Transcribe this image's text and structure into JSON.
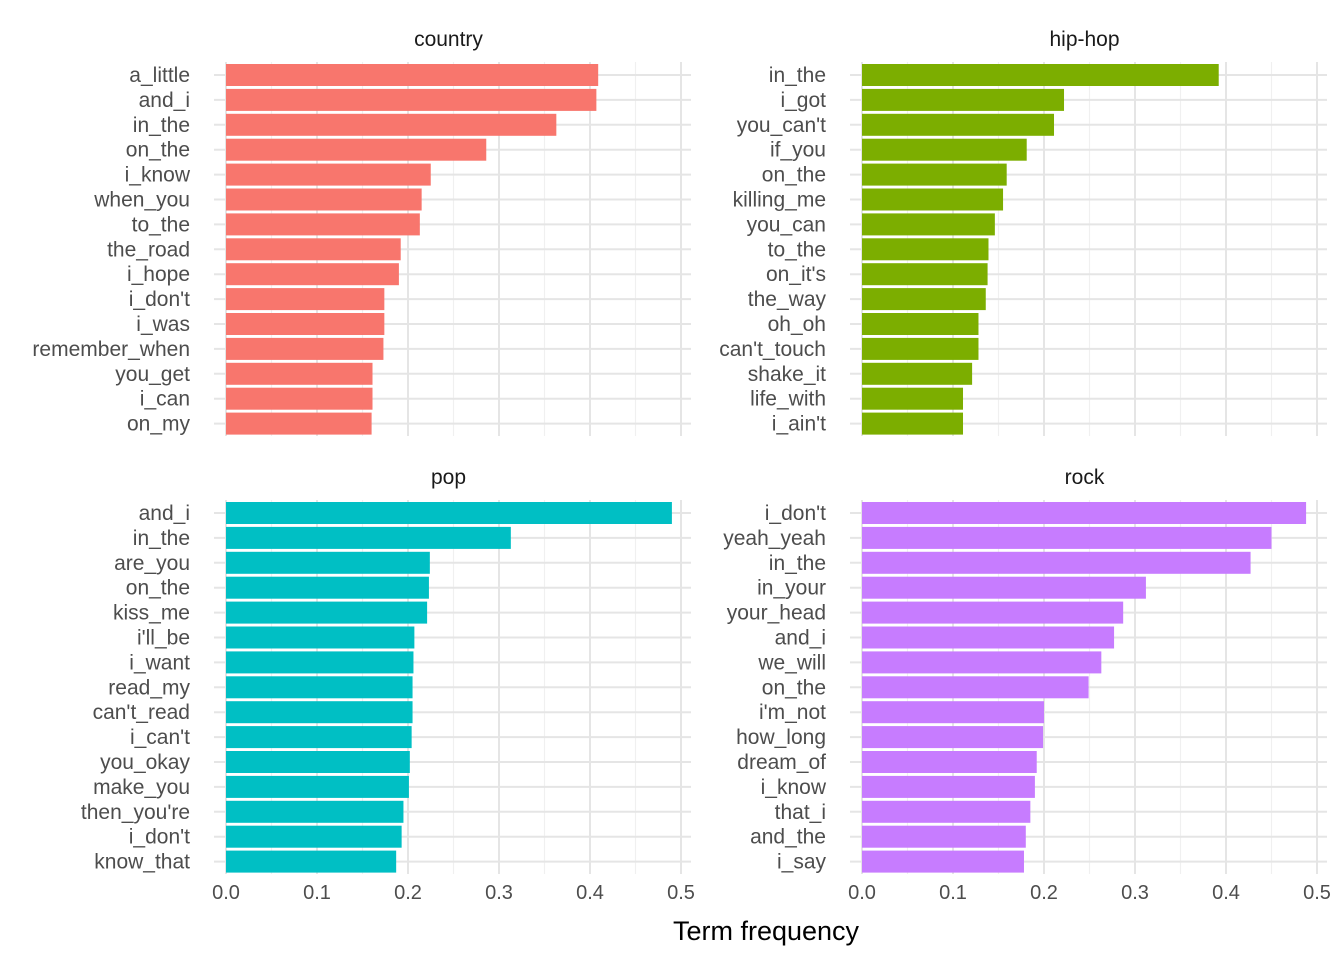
{
  "chart_data": {
    "type": "bar",
    "orientation": "horizontal",
    "layout": "facet-grid-2x2",
    "xlabel": "Term frequency",
    "ylabel": "",
    "xlim": [
      0,
      0.5
    ],
    "x_ticks": [
      "0.0",
      "0.1",
      "0.2",
      "0.3",
      "0.4",
      "0.5"
    ],
    "grid": true,
    "legend": "none",
    "panels": [
      {
        "title": "country",
        "color": "#F8766D",
        "categories": [
          "a_little",
          "and_i",
          "in_the",
          "on_the",
          "i_know",
          "when_you",
          "to_the",
          "the_road",
          "i_hope",
          "i_don't",
          "i_was",
          "remember_when",
          "you_get",
          "i_can",
          "on_my"
        ],
        "values": [
          0.409,
          0.407,
          0.363,
          0.286,
          0.225,
          0.215,
          0.213,
          0.192,
          0.19,
          0.174,
          0.174,
          0.173,
          0.161,
          0.161,
          0.16
        ]
      },
      {
        "title": "hip-hop",
        "color": "#7CAE00",
        "categories": [
          "in_the",
          "i_got",
          "you_can't",
          "if_you",
          "on_the",
          "killing_me",
          "you_can",
          "to_the",
          "on_it's",
          "the_way",
          "oh_oh",
          "can't_touch",
          "shake_it",
          "life_with",
          "i_ain't"
        ],
        "values": [
          0.392,
          0.222,
          0.211,
          0.181,
          0.159,
          0.155,
          0.146,
          0.139,
          0.138,
          0.136,
          0.128,
          0.128,
          0.121,
          0.111,
          0.111
        ]
      },
      {
        "title": "pop",
        "color": "#00BFC4",
        "categories": [
          "and_i",
          "in_the",
          "are_you",
          "on_the",
          "kiss_me",
          "i'll_be",
          "i_want",
          "read_my",
          "can't_read",
          "i_can't",
          "you_okay",
          "make_you",
          "then_you're",
          "i_don't",
          "know_that"
        ],
        "values": [
          0.49,
          0.313,
          0.224,
          0.223,
          0.221,
          0.207,
          0.206,
          0.205,
          0.205,
          0.204,
          0.202,
          0.201,
          0.195,
          0.193,
          0.187
        ]
      },
      {
        "title": "rock",
        "color": "#C77CFF",
        "categories": [
          "i_don't",
          "yeah_yeah",
          "in_the",
          "in_your",
          "your_head",
          "and_i",
          "we_will",
          "on_the",
          "i'm_not",
          "how_long",
          "dream_of",
          "i_know",
          "that_i",
          "and_the",
          "i_say"
        ],
        "values": [
          0.488,
          0.45,
          0.427,
          0.312,
          0.287,
          0.277,
          0.263,
          0.249,
          0.2,
          0.199,
          0.192,
          0.19,
          0.185,
          0.18,
          0.178
        ]
      }
    ]
  }
}
